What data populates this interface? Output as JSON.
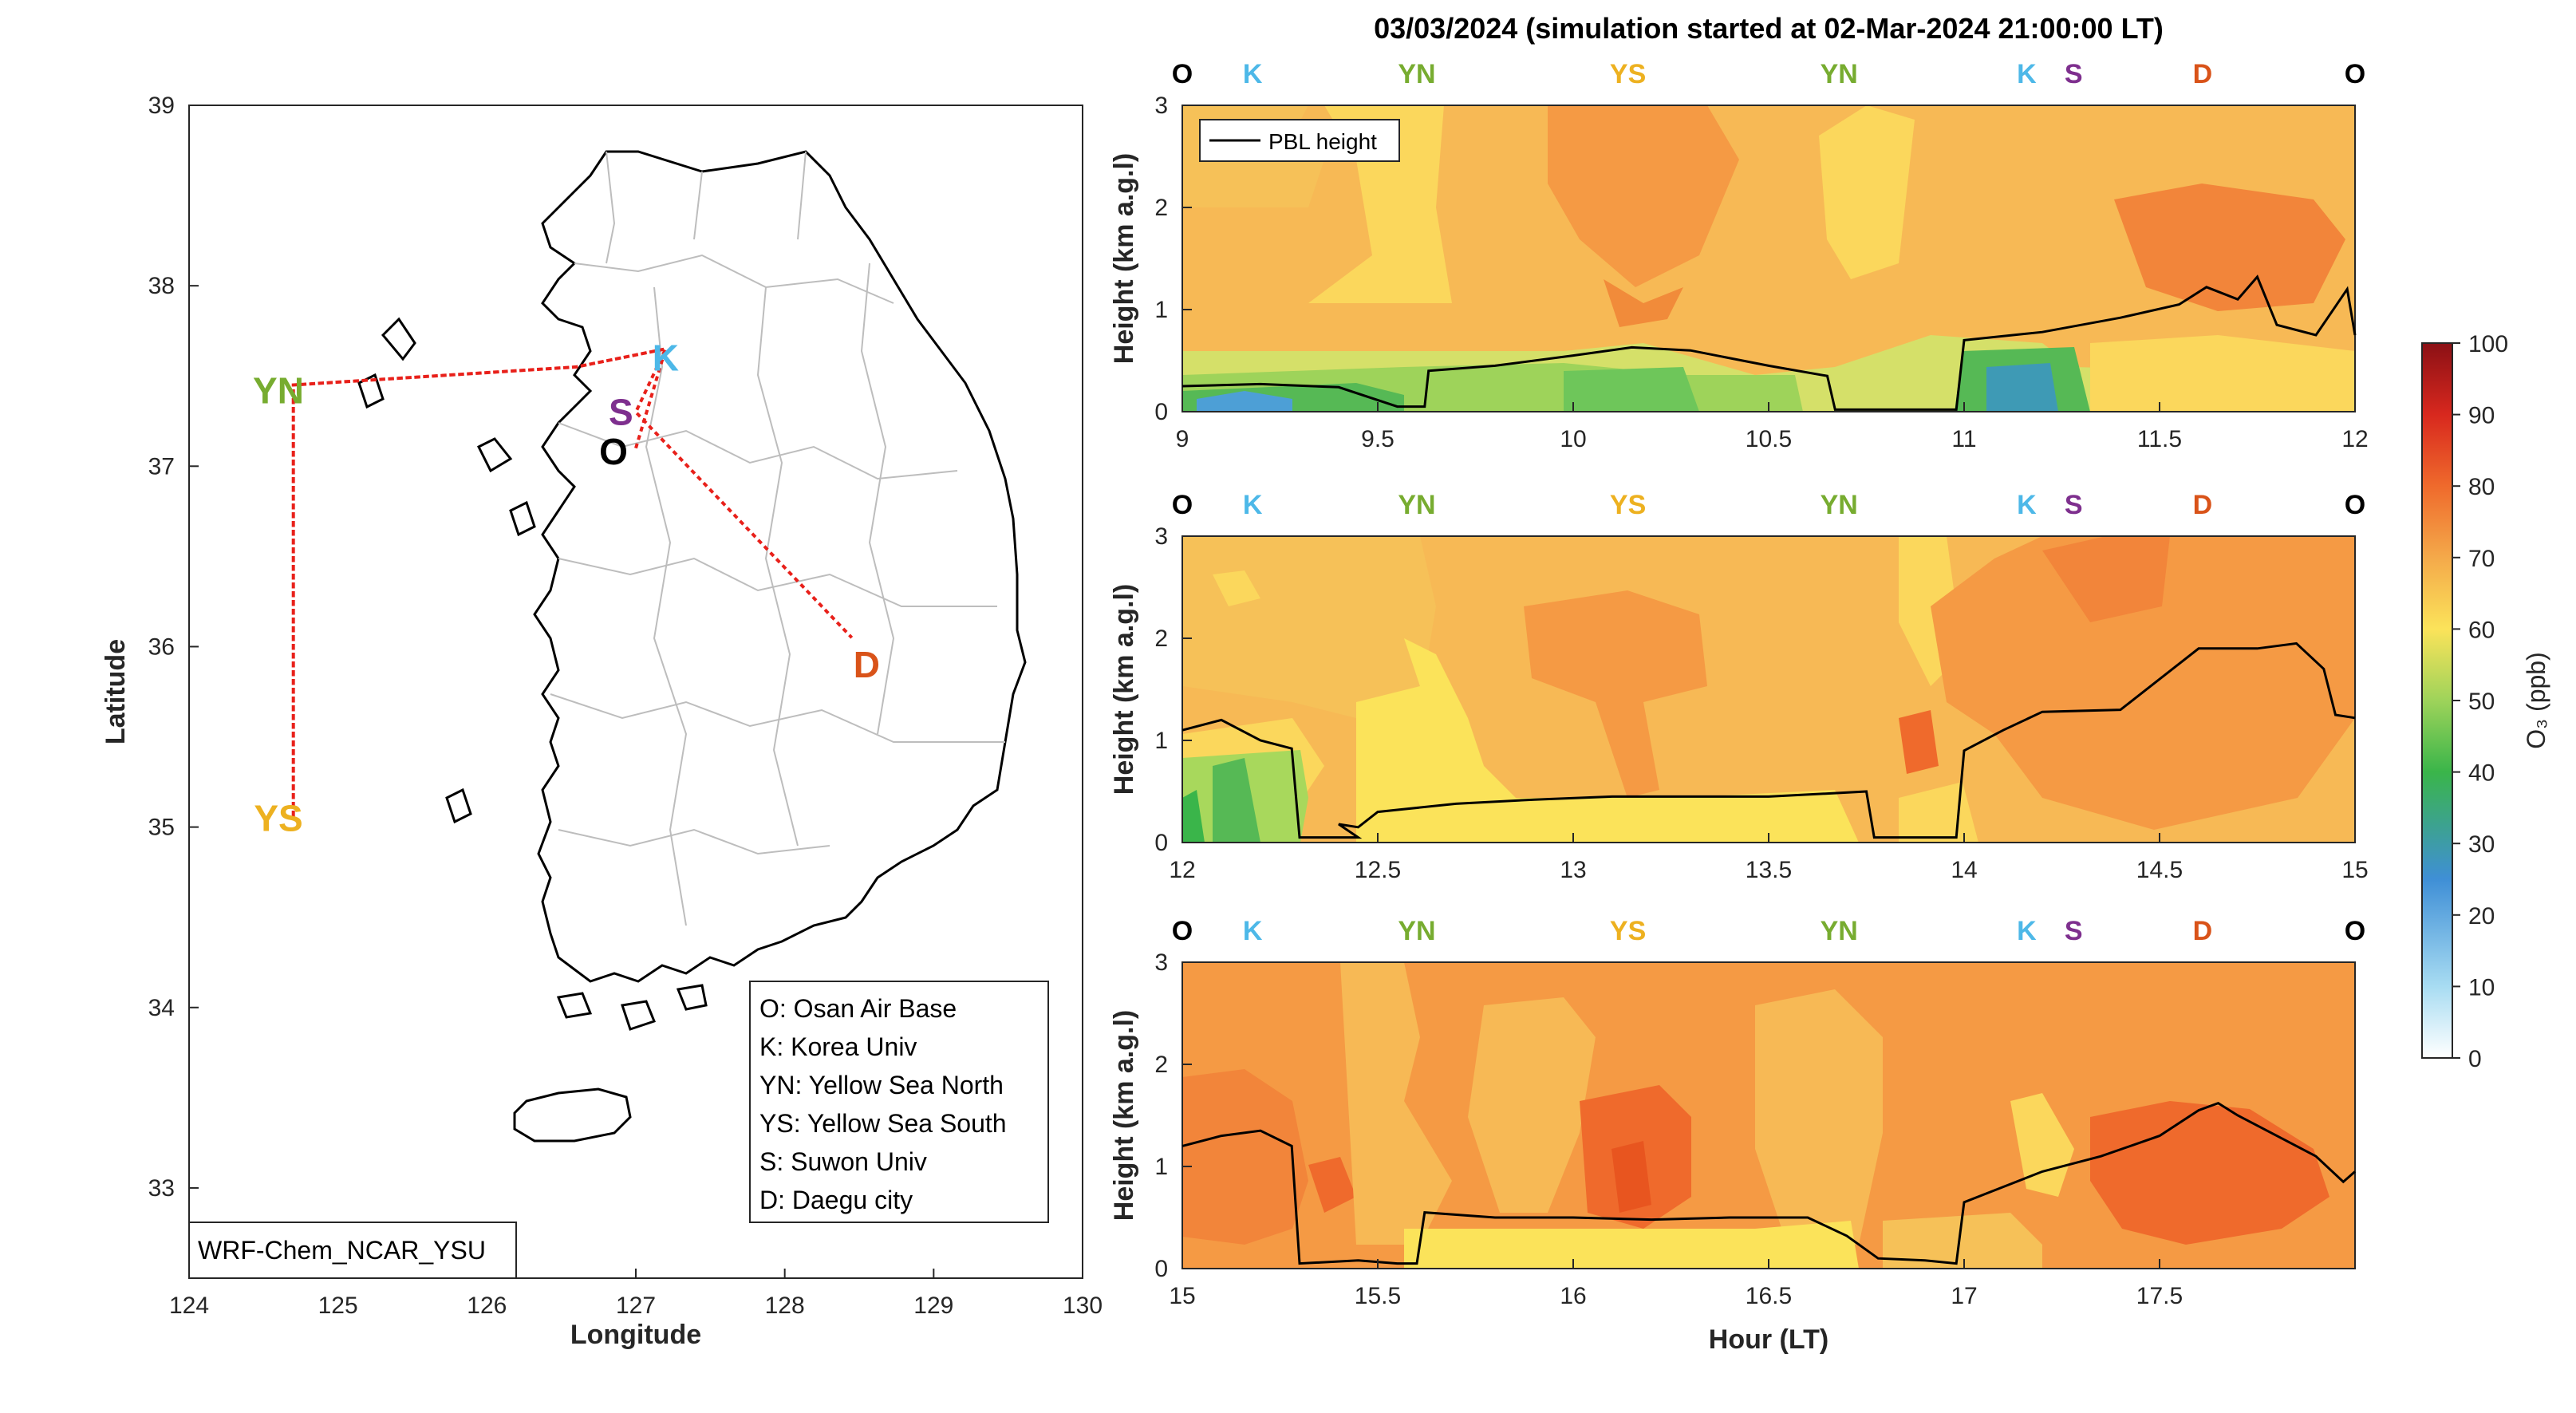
{
  "chart_data": [
    {
      "type": "map",
      "xlabel": "Longitude",
      "ylabel": "Latitude",
      "xlim": [
        124,
        130
      ],
      "ylim": [
        32.5,
        39
      ],
      "xticks": [
        "124",
        "125",
        "126",
        "127",
        "128",
        "129",
        "130"
      ],
      "yticks": [
        "33",
        "34",
        "35",
        "36",
        "37",
        "38",
        "39"
      ],
      "sites": [
        {
          "code": "K",
          "lon": 127.2,
          "lat": 37.6,
          "color": "#4db8e8"
        },
        {
          "code": "YN",
          "lon": 124.6,
          "lat": 37.42,
          "color": "#77ac30"
        },
        {
          "code": "S",
          "lon": 126.9,
          "lat": 37.3,
          "color": "#7e2f8e"
        },
        {
          "code": "O",
          "lon": 126.85,
          "lat": 37.08,
          "color": "#000000"
        },
        {
          "code": "D",
          "lon": 128.55,
          "lat": 35.9,
          "color": "#d95319"
        },
        {
          "code": "YS",
          "lon": 124.6,
          "lat": 35.05,
          "color": "#edb120"
        }
      ],
      "track": [
        {
          "lon": 127.0,
          "lat": 37.1
        },
        {
          "lon": 127.2,
          "lat": 37.65
        },
        {
          "lon": 126.6,
          "lat": 37.55
        },
        {
          "lon": 124.7,
          "lat": 37.45
        },
        {
          "lon": 124.7,
          "lat": 35.05
        },
        {
          "lon": 124.7,
          "lat": 37.45
        },
        {
          "lon": 126.6,
          "lat": 37.55
        },
        {
          "lon": 127.2,
          "lat": 37.65
        },
        {
          "lon": 127.0,
          "lat": 37.3
        },
        {
          "lon": 128.45,
          "lat": 36.05
        }
      ],
      "legend": [
        "O: Osan Air Base",
        "K: Korea Univ",
        "YN: Yellow Sea North",
        "YS: Yellow Sea South",
        "S: Suwon Univ",
        "D: Daegu city"
      ],
      "model_label": "WRF-Chem_NCAR_YSU"
    },
    {
      "type": "heatmap",
      "title": "03/03/2024 (simulation started at 02-Mar-2024 21:00:00 LT)",
      "ylabel": "Height (km a.g.l)",
      "xlabel": "Hour (LT)",
      "line_series_name": "PBL height",
      "colorbar": {
        "label": "O₃ (ppb)",
        "min": 0,
        "max": 100,
        "ticks": [
          "0",
          "10",
          "20",
          "30",
          "40",
          "50",
          "60",
          "70",
          "80",
          "90",
          "100"
        ]
      },
      "site_sequence": [
        {
          "code": "O",
          "frac": 0.0,
          "color": "#000000"
        },
        {
          "code": "K",
          "frac": 0.06,
          "color": "#4db8e8"
        },
        {
          "code": "YN",
          "frac": 0.2,
          "color": "#77ac30"
        },
        {
          "code": "YS",
          "frac": 0.38,
          "color": "#edb120"
        },
        {
          "code": "YN",
          "frac": 0.56,
          "color": "#77ac30"
        },
        {
          "code": "K",
          "frac": 0.72,
          "color": "#4db8e8"
        },
        {
          "code": "S",
          "frac": 0.76,
          "color": "#7e2f8e"
        },
        {
          "code": "D",
          "frac": 0.87,
          "color": "#d95319"
        },
        {
          "code": "O",
          "frac": 1.0,
          "color": "#000000"
        }
      ],
      "panels": [
        {
          "xlim": [
            9,
            12
          ],
          "ylim": [
            0,
            3
          ],
          "xticks": [
            "9",
            "9.5",
            "10",
            "10.5",
            "11",
            "11.5",
            "12"
          ],
          "yticks": [
            "0",
            "1",
            "2",
            "3"
          ],
          "pbl": [
            [
              9.0,
              0.25
            ],
            [
              9.2,
              0.27
            ],
            [
              9.4,
              0.24
            ],
            [
              9.55,
              0.05
            ],
            [
              9.62,
              0.05
            ],
            [
              9.63,
              0.4
            ],
            [
              9.8,
              0.45
            ],
            [
              10.0,
              0.55
            ],
            [
              10.15,
              0.63
            ],
            [
              10.3,
              0.6
            ],
            [
              10.5,
              0.45
            ],
            [
              10.65,
              0.35
            ],
            [
              10.67,
              0.02
            ],
            [
              10.98,
              0.02
            ],
            [
              11.0,
              0.7
            ],
            [
              11.2,
              0.78
            ],
            [
              11.4,
              0.92
            ],
            [
              11.55,
              1.05
            ],
            [
              11.62,
              1.22
            ],
            [
              11.7,
              1.1
            ],
            [
              11.75,
              1.32
            ],
            [
              11.8,
              0.85
            ],
            [
              11.9,
              0.75
            ],
            [
              11.98,
              1.2
            ],
            [
              12.0,
              0.75
            ]
          ]
        },
        {
          "xlim": [
            12,
            15
          ],
          "ylim": [
            0,
            3
          ],
          "xticks": [
            "12",
            "12.5",
            "13",
            "13.5",
            "14",
            "14.5",
            "15"
          ],
          "yticks": [
            "0",
            "1",
            "2",
            "3"
          ],
          "pbl": [
            [
              12.0,
              1.1
            ],
            [
              12.1,
              1.2
            ],
            [
              12.2,
              1.0
            ],
            [
              12.28,
              0.92
            ],
            [
              12.3,
              0.05
            ],
            [
              12.4,
              0.05
            ],
            [
              12.45,
              0.05
            ],
            [
              12.4,
              0.18
            ],
            [
              12.45,
              0.15
            ],
            [
              12.5,
              0.3
            ],
            [
              12.7,
              0.38
            ],
            [
              12.9,
              0.42
            ],
            [
              13.1,
              0.45
            ],
            [
              13.3,
              0.45
            ],
            [
              13.5,
              0.45
            ],
            [
              13.65,
              0.48
            ],
            [
              13.75,
              0.5
            ],
            [
              13.77,
              0.05
            ],
            [
              13.98,
              0.05
            ],
            [
              14.0,
              0.9
            ],
            [
              14.1,
              1.1
            ],
            [
              14.2,
              1.28
            ],
            [
              14.4,
              1.3
            ],
            [
              14.5,
              1.6
            ],
            [
              14.6,
              1.9
            ],
            [
              14.75,
              1.9
            ],
            [
              14.85,
              1.95
            ],
            [
              14.92,
              1.7
            ],
            [
              14.95,
              1.25
            ],
            [
              15.0,
              1.22
            ]
          ]
        },
        {
          "xlim": [
            15,
            18
          ],
          "ylim": [
            0,
            3
          ],
          "xticks": [
            "15",
            "15.5",
            "16",
            "16.5",
            "17",
            "17.5"
          ],
          "yticks": [
            "0",
            "1",
            "2",
            "3"
          ],
          "pbl": [
            [
              15.0,
              1.2
            ],
            [
              15.1,
              1.3
            ],
            [
              15.2,
              1.35
            ],
            [
              15.28,
              1.2
            ],
            [
              15.3,
              0.05
            ],
            [
              15.45,
              0.08
            ],
            [
              15.55,
              0.05
            ],
            [
              15.6,
              0.05
            ],
            [
              15.62,
              0.55
            ],
            [
              15.8,
              0.5
            ],
            [
              16.0,
              0.5
            ],
            [
              16.2,
              0.48
            ],
            [
              16.4,
              0.5
            ],
            [
              16.6,
              0.5
            ],
            [
              16.7,
              0.32
            ],
            [
              16.78,
              0.1
            ],
            [
              16.9,
              0.08
            ],
            [
              16.98,
              0.05
            ],
            [
              17.0,
              0.65
            ],
            [
              17.1,
              0.8
            ],
            [
              17.2,
              0.95
            ],
            [
              17.35,
              1.1
            ],
            [
              17.5,
              1.3
            ],
            [
              17.6,
              1.55
            ],
            [
              17.65,
              1.62
            ],
            [
              17.7,
              1.5
            ],
            [
              17.8,
              1.3
            ],
            [
              17.9,
              1.1
            ],
            [
              17.97,
              0.85
            ],
            [
              18.0,
              0.95
            ]
          ]
        }
      ]
    }
  ]
}
